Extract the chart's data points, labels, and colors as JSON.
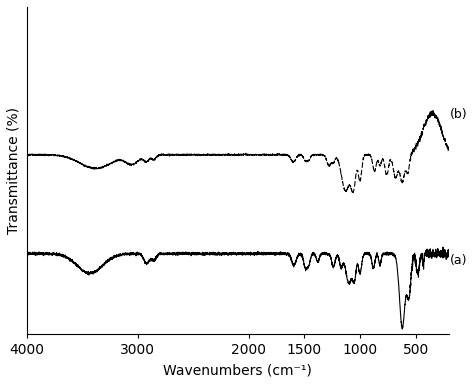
{
  "title": "",
  "xlabel": "Wavenumbers (cm⁻¹)",
  "ylabel": "Transmittance (%)",
  "xlim_left": 4000,
  "xlim_right": 200,
  "xticks": [
    4000,
    3000,
    2000,
    1500,
    1000,
    500
  ],
  "background_color": "#ffffff",
  "label_a": "(a)",
  "label_b": "(b)",
  "linecolor": "#000000",
  "linewidth": 0.8,
  "linewidth_thin": 0.6
}
